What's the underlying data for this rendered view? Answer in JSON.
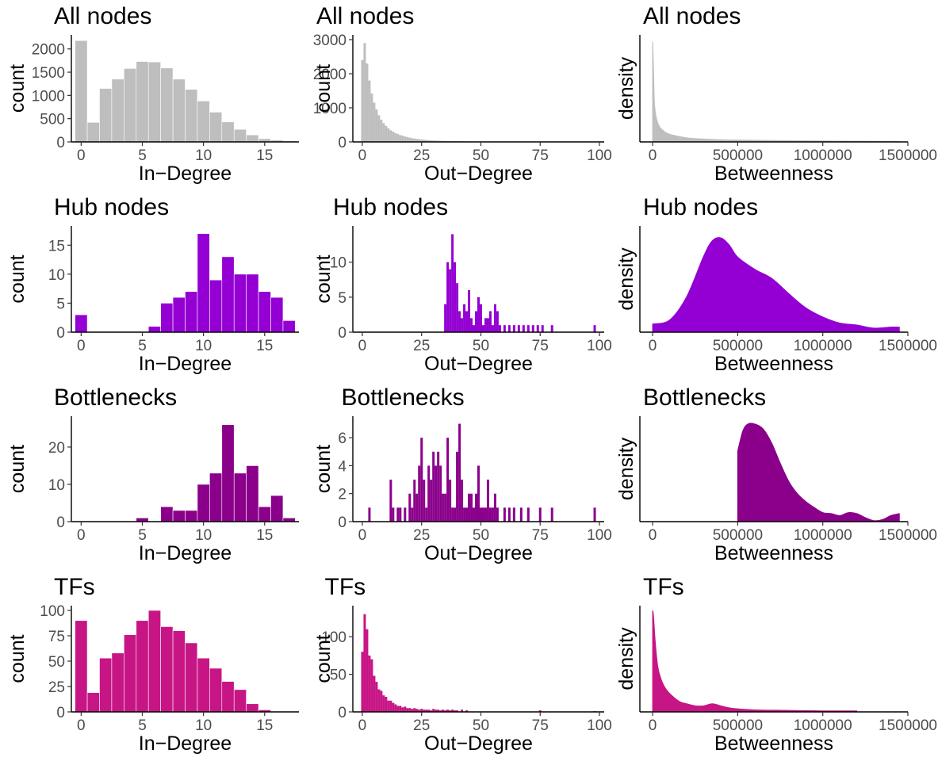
{
  "figure": {
    "background": "#ffffff"
  },
  "chart_data": [
    {
      "type": "bar",
      "panel": "in-degree",
      "title": "All nodes",
      "color": "#bebebe",
      "xlabel": "In−Degree",
      "ylabel": "count",
      "xlim": [
        -0.8,
        17.8
      ],
      "ylim": [
        0,
        2200
      ],
      "xticks": [
        0,
        5,
        10,
        15
      ],
      "yticks": [
        0,
        500,
        1000,
        1500,
        2000
      ],
      "bin_width": 1,
      "x": [
        0,
        1,
        2,
        3,
        4,
        5,
        6,
        7,
        8,
        9,
        10,
        11,
        12,
        13,
        14,
        15,
        16,
        17
      ],
      "values": [
        2180,
        420,
        1150,
        1350,
        1580,
        1730,
        1720,
        1590,
        1350,
        1130,
        880,
        640,
        430,
        270,
        150,
        70,
        40,
        20
      ]
    },
    {
      "type": "bar",
      "panel": "out-degree",
      "title": "All nodes",
      "color": "#bebebe",
      "xlabel": "Out−Degree",
      "ylabel": "count",
      "xlim": [
        -4,
        102
      ],
      "ylim": [
        0,
        3000
      ],
      "xticks": [
        0,
        25,
        50,
        75,
        100
      ],
      "yticks": [
        0,
        1000,
        2000,
        3000
      ],
      "bin_width": 1,
      "x": [
        0,
        1,
        2,
        3,
        4,
        5,
        6,
        7,
        8,
        9,
        10,
        11,
        12,
        13,
        14,
        15,
        16,
        17,
        18,
        19,
        20,
        21,
        22,
        23,
        24,
        25,
        26,
        27,
        28,
        29,
        30,
        31,
        32,
        33,
        34,
        35,
        36,
        37,
        38,
        39,
        40,
        41,
        42,
        43,
        44,
        45,
        46,
        47,
        48,
        49,
        50,
        51,
        52,
        53,
        54,
        55,
        56,
        58,
        60,
        62,
        64,
        66,
        68,
        70,
        72,
        75,
        78,
        80,
        98
      ],
      "values": [
        2400,
        2900,
        2300,
        1800,
        1420,
        1150,
        950,
        780,
        650,
        550,
        470,
        400,
        340,
        300,
        260,
        230,
        200,
        180,
        160,
        140,
        125,
        110,
        100,
        90,
        80,
        72,
        65,
        58,
        52,
        48,
        44,
        40,
        37,
        34,
        31,
        29,
        27,
        25,
        23,
        21,
        20,
        19,
        18,
        17,
        16,
        15,
        14,
        13,
        12,
        11,
        10,
        10,
        9,
        9,
        8,
        8,
        7,
        7,
        6,
        6,
        5,
        5,
        5,
        4,
        4,
        4,
        3,
        3,
        3
      ]
    },
    {
      "type": "area",
      "panel": "betweenness",
      "title": "All nodes",
      "color": "#bebebe",
      "xlabel": "Betweenness",
      "ylabel": "density",
      "xlim": [
        -75000,
        1500000
      ],
      "ylim": [
        0,
        1
      ],
      "xticks": [
        0,
        500000,
        1000000,
        1500000
      ],
      "yticks": [],
      "x": [
        0,
        5000,
        10000,
        20000,
        40000,
        70000,
        100000,
        150000,
        200000,
        300000,
        500000,
        800000,
        1200000,
        1450000
      ],
      "values": [
        0.98,
        0.72,
        0.4,
        0.25,
        0.15,
        0.1,
        0.075,
        0.055,
        0.04,
        0.028,
        0.018,
        0.012,
        0.008,
        0.006
      ]
    },
    {
      "type": "bar",
      "panel": "in-degree",
      "title": "Hub nodes",
      "color": "#9400d3",
      "xlabel": "In−Degree",
      "ylabel": "count",
      "xlim": [
        -0.8,
        17.8
      ],
      "ylim": [
        0,
        17.5
      ],
      "xticks": [
        0,
        5,
        10,
        15
      ],
      "yticks": [
        0,
        5,
        10,
        15
      ],
      "bin_width": 1,
      "x": [
        0,
        1,
        2,
        3,
        4,
        5,
        6,
        7,
        8,
        9,
        10,
        11,
        12,
        13,
        14,
        15,
        16,
        17
      ],
      "values": [
        3,
        0,
        0,
        0,
        0,
        0,
        1,
        5,
        6,
        7,
        17,
        9,
        13,
        10,
        10,
        7,
        6,
        2
      ]
    },
    {
      "type": "bar",
      "panel": "out-degree",
      "title": "Hub nodes",
      "color": "#9400d3",
      "xlabel": "Out−Degree",
      "ylabel": "count",
      "xlim": [
        -4,
        102
      ],
      "ylim": [
        0,
        14.5
      ],
      "xticks": [
        0,
        25,
        50,
        75,
        100
      ],
      "yticks": [
        0,
        5,
        10
      ],
      "bin_width": 1,
      "x": [
        35,
        36,
        37,
        38,
        39,
        40,
        41,
        42,
        43,
        44,
        45,
        46,
        47,
        48,
        49,
        50,
        51,
        52,
        53,
        54,
        55,
        56,
        57,
        58,
        60,
        62,
        64,
        66,
        68,
        70,
        72,
        74,
        76,
        80,
        98
      ],
      "values": [
        4,
        10,
        9,
        14,
        10,
        7,
        3,
        2,
        4,
        3,
        6,
        2,
        1,
        3,
        5,
        4,
        1,
        2,
        2,
        3,
        1,
        4,
        3,
        1,
        1,
        1,
        1,
        1,
        1,
        1,
        1,
        1,
        1,
        1,
        1
      ]
    },
    {
      "type": "area",
      "panel": "betweenness",
      "title": "Hub nodes",
      "color": "#9400d3",
      "xlabel": "Betweenness",
      "ylabel": "density",
      "xlim": [
        -75000,
        1500000
      ],
      "ylim": [
        0,
        1
      ],
      "xticks": [
        0,
        500000,
        1000000,
        1500000
      ],
      "yticks": [],
      "x": [
        0,
        100000,
        200000,
        300000,
        350000,
        400000,
        450000,
        500000,
        600000,
        700000,
        800000,
        900000,
        1000000,
        1100000,
        1200000,
        1300000,
        1400000,
        1450000
      ],
      "values": [
        0.08,
        0.12,
        0.35,
        0.75,
        0.9,
        0.93,
        0.86,
        0.74,
        0.62,
        0.53,
        0.38,
        0.24,
        0.15,
        0.09,
        0.07,
        0.04,
        0.05,
        0.05
      ]
    },
    {
      "type": "bar",
      "panel": "in-degree",
      "title": "Bottlenecks",
      "color": "#8b008b",
      "xlabel": "In−Degree",
      "ylabel": "count",
      "xlim": [
        -0.8,
        17.8
      ],
      "ylim": [
        0,
        27
      ],
      "xticks": [
        0,
        5,
        10,
        15
      ],
      "yticks": [
        0,
        10,
        20
      ],
      "bin_width": 1,
      "x": [
        0,
        1,
        2,
        3,
        4,
        5,
        6,
        7,
        8,
        9,
        10,
        11,
        12,
        13,
        14,
        15,
        16,
        17
      ],
      "values": [
        0,
        0,
        0,
        0,
        0,
        1,
        0,
        4,
        3,
        3,
        10,
        13,
        26,
        13,
        15,
        4,
        7,
        1
      ]
    },
    {
      "type": "bar",
      "panel": "out-degree",
      "title": "Bottlenecks",
      "color": "#8b008b",
      "xlabel": "Out−Degree",
      "ylabel": "count",
      "xlim": [
        -4,
        102
      ],
      "ylim": [
        0,
        7.2
      ],
      "xticks": [
        0,
        25,
        50,
        75,
        100
      ],
      "yticks": [
        0,
        2,
        4,
        6
      ],
      "bin_width": 1,
      "x": [
        3,
        12,
        13,
        15,
        16,
        18,
        20,
        21,
        22,
        23,
        24,
        25,
        26,
        27,
        28,
        29,
        30,
        31,
        32,
        33,
        34,
        35,
        36,
        37,
        38,
        39,
        40,
        41,
        42,
        43,
        44,
        45,
        46,
        47,
        48,
        49,
        50,
        51,
        52,
        53,
        54,
        55,
        56,
        57,
        60,
        62,
        64,
        67,
        70,
        75,
        80,
        98
      ],
      "values": [
        1,
        3,
        1,
        1,
        1,
        1,
        2,
        1,
        3,
        2,
        4,
        6,
        3,
        1,
        4,
        3,
        5,
        4,
        5,
        4,
        2,
        2,
        6,
        3,
        1,
        1,
        5,
        7,
        3,
        1,
        1,
        2,
        2,
        1,
        2,
        4,
        1,
        1,
        1,
        3,
        1,
        1,
        2,
        1,
        1,
        1,
        1,
        1,
        1,
        1,
        1,
        1
      ]
    },
    {
      "type": "area",
      "panel": "betweenness",
      "title": "Bottlenecks",
      "color": "#8b008b",
      "xlabel": "Betweenness",
      "ylabel": "density",
      "xlim": [
        -75000,
        1500000
      ],
      "ylim": [
        0,
        1
      ],
      "xticks": [
        0,
        500000,
        1000000,
        1500000
      ],
      "yticks": [],
      "x": [
        500000,
        530000,
        560000,
        600000,
        650000,
        700000,
        750000,
        800000,
        850000,
        900000,
        950000,
        1000000,
        1050000,
        1100000,
        1150000,
        1200000,
        1250000,
        1300000,
        1350000,
        1400000,
        1450000
      ],
      "values": [
        0.7,
        0.9,
        0.97,
        0.97,
        0.92,
        0.78,
        0.58,
        0.4,
        0.28,
        0.2,
        0.14,
        0.09,
        0.08,
        0.06,
        0.09,
        0.08,
        0.04,
        0.01,
        0.02,
        0.06,
        0.08
      ]
    },
    {
      "type": "bar",
      "panel": "in-degree",
      "title": "TFs",
      "color": "#c71585",
      "xlabel": "In−Degree",
      "ylabel": "count",
      "xlim": [
        -0.8,
        17.8
      ],
      "ylim": [
        0,
        100
      ],
      "xticks": [
        0,
        5,
        10,
        15
      ],
      "yticks": [
        0,
        25,
        50,
        75,
        100
      ],
      "bin_width": 1,
      "x": [
        0,
        1,
        2,
        3,
        4,
        5,
        6,
        7,
        8,
        9,
        10,
        11,
        12,
        13,
        14,
        15,
        16,
        17
      ],
      "values": [
        90,
        19,
        53,
        58,
        76,
        90,
        100,
        84,
        80,
        68,
        53,
        43,
        30,
        22,
        8,
        2,
        0,
        0
      ]
    },
    {
      "type": "bar",
      "panel": "out-degree",
      "title": "TFs",
      "color": "#c71585",
      "xlabel": "Out−Degree",
      "ylabel": "count",
      "xlim": [
        -4,
        102
      ],
      "ylim": [
        0,
        135
      ],
      "xticks": [
        0,
        25,
        50,
        75,
        100
      ],
      "yticks": [
        0,
        50,
        100
      ],
      "bin_width": 1,
      "x": [
        0,
        1,
        2,
        3,
        4,
        5,
        6,
        7,
        8,
        9,
        10,
        11,
        12,
        13,
        14,
        15,
        16,
        17,
        18,
        19,
        20,
        21,
        22,
        23,
        24,
        25,
        26,
        27,
        28,
        29,
        30,
        31,
        32,
        33,
        34,
        35,
        36,
        37,
        38,
        39,
        40,
        42,
        44,
        75,
        98
      ],
      "values": [
        80,
        130,
        110,
        75,
        70,
        48,
        40,
        30,
        28,
        22,
        20,
        15,
        15,
        12,
        10,
        8,
        8,
        6,
        7,
        5,
        5,
        4,
        5,
        4,
        3,
        4,
        3,
        3,
        3,
        2,
        4,
        3,
        3,
        2,
        3,
        2,
        3,
        2,
        3,
        2,
        2,
        3,
        2,
        2,
        1
      ]
    },
    {
      "type": "area",
      "panel": "betweenness",
      "title": "TFs",
      "color": "#c71585",
      "xlabel": "Betweenness",
      "ylabel": "density",
      "xlim": [
        -75000,
        1500000
      ],
      "ylim": [
        0,
        1
      ],
      "xticks": [
        0,
        500000,
        1000000,
        1500000
      ],
      "yticks": [],
      "x": [
        0,
        5000,
        15000,
        30000,
        50000,
        80000,
        120000,
        160000,
        200000,
        250000,
        300000,
        350000,
        400000,
        450000,
        500000,
        600000,
        800000,
        1000000,
        1200000
      ],
      "values": [
        1.0,
        0.95,
        0.7,
        0.45,
        0.32,
        0.22,
        0.15,
        0.1,
        0.08,
        0.06,
        0.06,
        0.08,
        0.06,
        0.04,
        0.03,
        0.02,
        0.015,
        0.01,
        0.01
      ]
    }
  ]
}
